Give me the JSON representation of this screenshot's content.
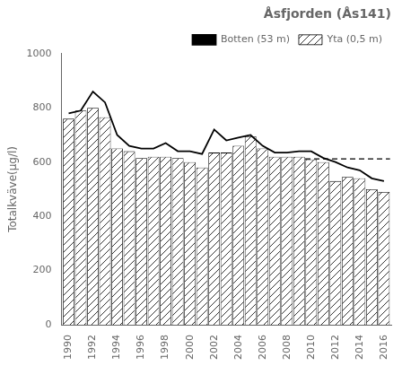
{
  "chart_data": {
    "type": "bar",
    "title": "Åsfjorden (Ås141)",
    "ylabel": "Totalkväve(µg/l)",
    "x": [
      1990,
      1991,
      1992,
      1993,
      1994,
      1995,
      1996,
      1997,
      1998,
      1999,
      2000,
      2001,
      2002,
      2003,
      2004,
      2005,
      2006,
      2007,
      2008,
      2009,
      2010,
      2011,
      2012,
      2013,
      2014,
      2015,
      2016
    ],
    "series": [
      {
        "name": "Yta (0,5 m)",
        "type": "bar",
        "color": "#ffffff",
        "values": [
          760,
          790,
          800,
          765,
          650,
          640,
          615,
          620,
          620,
          615,
          600,
          580,
          635,
          635,
          660,
          695,
          650,
          620,
          620,
          620,
          610,
          600,
          530,
          545,
          540,
          500,
          490
        ]
      },
      {
        "name": "Botten (53 m)",
        "type": "line",
        "color": "#000000",
        "line_style": "solid",
        "values": [
          780,
          790,
          860,
          820,
          700,
          660,
          650,
          650,
          670,
          640,
          640,
          630,
          720,
          680,
          690,
          700,
          660,
          635,
          635,
          640,
          640,
          615,
          600,
          580,
          570,
          540,
          530
        ]
      },
      {
        "type": "line",
        "color": "#000000",
        "line_style": "dashed",
        "x": [
          2009.5,
          2016.5
        ],
        "values": [
          612,
          612
        ]
      }
    ],
    "xlim": [
      1989.4,
      2016.6
    ],
    "xticks": [
      1990,
      1992,
      1994,
      1996,
      1998,
      2000,
      2002,
      2004,
      2006,
      2008,
      2010,
      2012,
      2014,
      2016
    ],
    "ylim": [
      0,
      1000
    ],
    "yticks": [
      0,
      200,
      400,
      600,
      800,
      1000
    ],
    "grid": false,
    "legend": "upper right"
  }
}
